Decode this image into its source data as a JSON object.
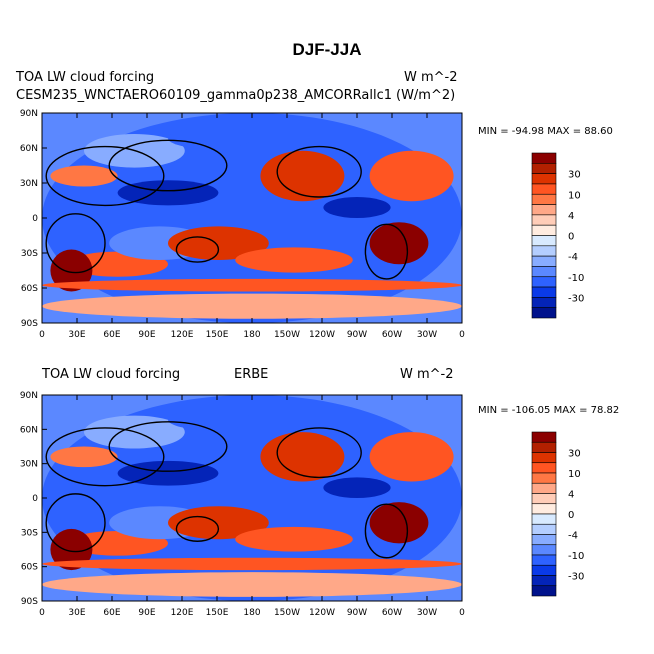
{
  "title": "DJF-JJA",
  "panels": [
    {
      "left_title": "CESM235_WNCTAERO60109_gamma0p238_AMCORRallc1",
      "left_title_overlay": "TOA LW cloud forcing",
      "center_title": "",
      "right_title": "(W/m^2)",
      "right_title_overlay": "W m^-2",
      "stats": "MIN = -94.98 MAX =  88.60"
    },
    {
      "left_title": "TOA LW cloud forcing",
      "center_title": "ERBE",
      "right_title": "W m^-2",
      "stats": "MIN = -106.05 MAX =  78.82"
    }
  ],
  "chart_data": {
    "type": "heatmap",
    "title": "DJF-JJA",
    "ylabels": [
      "90N",
      "60N",
      "30N",
      "0",
      "30S",
      "60S",
      "90S"
    ],
    "xlabels": [
      "0",
      "30E",
      "60E",
      "90E",
      "120E",
      "150E",
      "180",
      "150W",
      "120W",
      "90W",
      "60W",
      "30W",
      "0"
    ],
    "colorbar_labels": [
      "30",
      "10",
      "4",
      "0",
      "-4",
      "-10",
      "-30"
    ],
    "colorbar_colors": [
      "#8b0000",
      "#b22000",
      "#dd3300",
      "#ff5522",
      "#ff7744",
      "#ffa888",
      "#ffcdb8",
      "#ffece0",
      "#d8eaff",
      "#b4ceff",
      "#88acff",
      "#5b88ff",
      "#2e62ff",
      "#0a3ae8",
      "#0424b8",
      "#00128c"
    ]
  }
}
